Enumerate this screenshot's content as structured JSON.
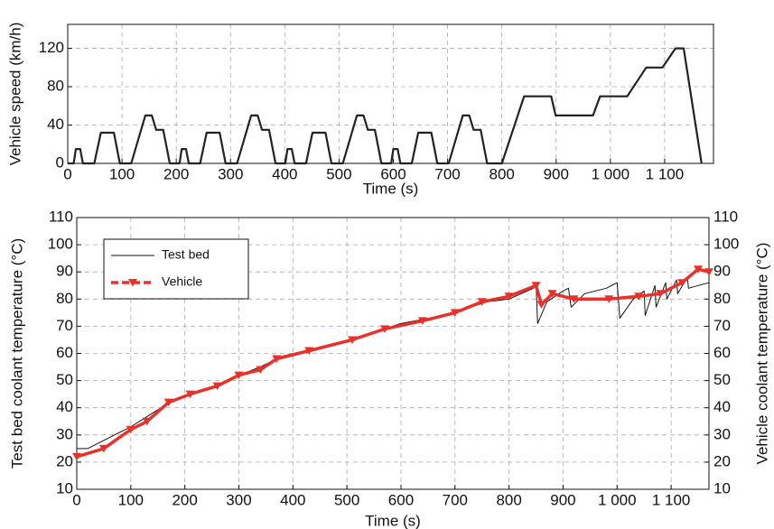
{
  "chart_data": [
    {
      "type": "line",
      "xlabel": "Time (s)",
      "ylabel": "Vehicle speed (km/h)",
      "xlim": [
        0,
        1190
      ],
      "ylim": [
        0,
        145
      ],
      "xticks": [
        0,
        100,
        200,
        300,
        400,
        500,
        600,
        700,
        800,
        900,
        {
          "value": 1000,
          "label": "1 000"
        },
        {
          "value": 1100,
          "label": "1 100"
        }
      ],
      "yticks": [
        0,
        40,
        80,
        120
      ],
      "grid": true,
      "series": [
        {
          "name": "Vehicle speed",
          "color": "#222222",
          "x": [
            0,
            11,
            15,
            23,
            28,
            49,
            61,
            85,
            96,
            117,
            143,
            155,
            163,
            176,
            188,
            195,
            206,
            210,
            218,
            223,
            244,
            256,
            280,
            291,
            312,
            338,
            350,
            358,
            371,
            383,
            390,
            401,
            405,
            413,
            418,
            439,
            451,
            475,
            486,
            507,
            533,
            545,
            553,
            566,
            578,
            585,
            596,
            600,
            608,
            613,
            634,
            646,
            670,
            681,
            702,
            728,
            740,
            748,
            761,
            773,
            780,
            800,
            841,
            891,
            899,
            968,
            981,
            1031,
            1066,
            1096,
            1120,
            1135,
            1168
          ],
          "values": [
            0,
            0,
            15,
            15,
            0,
            0,
            32,
            32,
            0,
            0,
            50,
            50,
            35,
            35,
            0,
            0,
            0,
            15,
            15,
            0,
            0,
            32,
            32,
            0,
            0,
            50,
            50,
            35,
            35,
            0,
            0,
            0,
            15,
            15,
            0,
            0,
            32,
            32,
            0,
            0,
            50,
            50,
            35,
            35,
            0,
            0,
            0,
            15,
            15,
            0,
            0,
            32,
            32,
            0,
            0,
            50,
            50,
            35,
            35,
            0,
            0,
            0,
            70,
            70,
            50,
            50,
            70,
            70,
            100,
            100,
            120,
            120,
            0
          ]
        }
      ]
    },
    {
      "type": "line",
      "xlabel": "Time (s)",
      "ylabel": "Test bed coolant temperature (°C)",
      "y2label": "Vehicle coolant temperature (°C)",
      "xlim": [
        0,
        1170
      ],
      "ylim": [
        10,
        110
      ],
      "y2lim": [
        10,
        110
      ],
      "xticks": [
        0,
        100,
        200,
        300,
        400,
        500,
        600,
        700,
        800,
        900,
        {
          "value": 1000,
          "label": "1 000"
        },
        {
          "value": 1100,
          "label": "1 100"
        }
      ],
      "yticks": [
        10,
        20,
        30,
        40,
        50,
        60,
        70,
        80,
        90,
        100,
        110
      ],
      "y2ticks": [
        10,
        20,
        30,
        40,
        50,
        60,
        70,
        80,
        90,
        100,
        110
      ],
      "grid": true,
      "legend": "upper left",
      "series": [
        {
          "name": "Test bed",
          "color": "#111111",
          "width": 1,
          "x": [
            0,
            20,
            60,
            100,
            140,
            180,
            260,
            300,
            340,
            380,
            450,
            520,
            600,
            680,
            760,
            800,
            845,
            850,
            853,
            870,
            900,
            910,
            915,
            940,
            980,
            1000,
            1005,
            1030,
            1050,
            1052,
            1070,
            1072,
            1090,
            1092,
            1110,
            1112,
            1130,
            1132,
            1150,
            1170
          ],
          "values": [
            25,
            25,
            29,
            33,
            38,
            43,
            48,
            52,
            55,
            59,
            62,
            66,
            71,
            74,
            79,
            80,
            84,
            86,
            71,
            79,
            83,
            84,
            77,
            82,
            84,
            86,
            73,
            80,
            83,
            74,
            85,
            77,
            86,
            80,
            87,
            82,
            88,
            84,
            85,
            86
          ]
        },
        {
          "name": "Vehicle",
          "color": "#e8312a",
          "width": 3.5,
          "marker": "triangle-down",
          "axis": "y2",
          "x": [
            0,
            50,
            100,
            130,
            170,
            210,
            260,
            300,
            340,
            370,
            430,
            510,
            570,
            640,
            700,
            750,
            800,
            850,
            860,
            880,
            920,
            985,
            1040,
            1080,
            1120,
            1150,
            1170
          ],
          "values": [
            22,
            25,
            32,
            35,
            42,
            45,
            48,
            52,
            54,
            58,
            61,
            65,
            69,
            72,
            75,
            79,
            81,
            85,
            78,
            82,
            80,
            80,
            81,
            82,
            86,
            91,
            90
          ]
        }
      ]
    }
  ]
}
